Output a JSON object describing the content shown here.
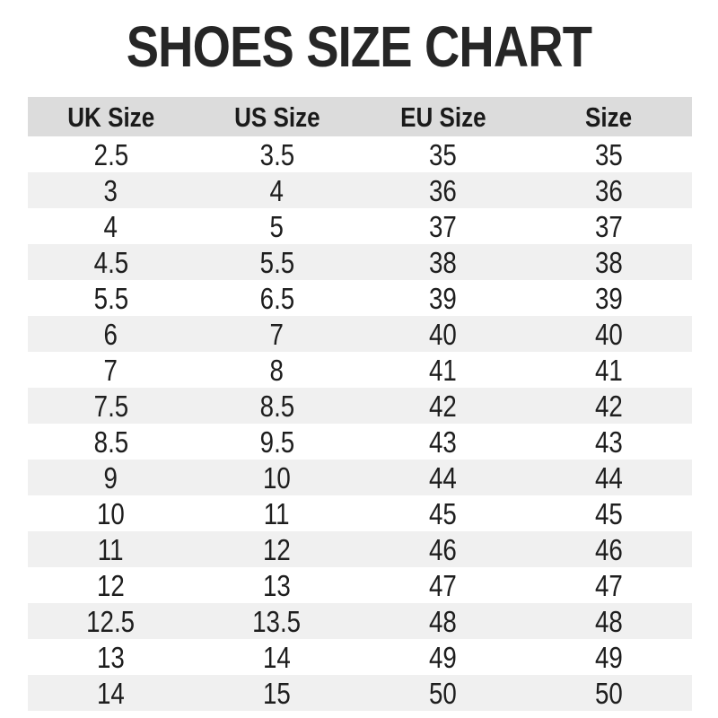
{
  "title": "SHOES SIZE CHART",
  "colors": {
    "header_bg": "#dcdcdc",
    "stripe_bg": "#f0f0f0",
    "row_bg": "#ffffff",
    "text": "#1e1e1e",
    "title": "#262626",
    "page_bg": "#ffffff"
  },
  "chart_data": {
    "type": "table",
    "title": "SHOES SIZE CHART",
    "columns": [
      "UK Size",
      "US Size",
      "EU Size",
      "Size"
    ],
    "rows": [
      [
        "2.5",
        "3.5",
        "35",
        "35"
      ],
      [
        "3",
        "4",
        "36",
        "36"
      ],
      [
        "4",
        "5",
        "37",
        "37"
      ],
      [
        "4.5",
        "5.5",
        "38",
        "38"
      ],
      [
        "5.5",
        "6.5",
        "39",
        "39"
      ],
      [
        "6",
        "7",
        "40",
        "40"
      ],
      [
        "7",
        "8",
        "41",
        "41"
      ],
      [
        "7.5",
        "8.5",
        "42",
        "42"
      ],
      [
        "8.5",
        "9.5",
        "43",
        "43"
      ],
      [
        "9",
        "10",
        "44",
        "44"
      ],
      [
        "10",
        "11",
        "45",
        "45"
      ],
      [
        "11",
        "12",
        "46",
        "46"
      ],
      [
        "12",
        "13",
        "47",
        "47"
      ],
      [
        "12.5",
        "13.5",
        "48",
        "48"
      ],
      [
        "13",
        "14",
        "49",
        "49"
      ],
      [
        "14",
        "15",
        "50",
        "50"
      ]
    ],
    "layout": {
      "striped": true,
      "stripe_pattern": "odd-rows-gray",
      "header_background": "#dcdcdc",
      "stripe_background": "#f0f0f0",
      "column_alignment": "center"
    }
  }
}
